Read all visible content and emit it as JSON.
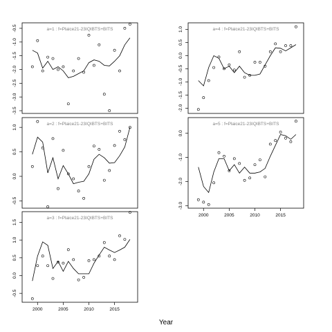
{
  "chart_data": [
    {
      "type": "line",
      "title": "a=1 : f=Plaice21-23IQIBTS+BITS",
      "xlim": [
        1997,
        2019.5
      ],
      "ylim": [
        -3.6,
        -0.3
      ],
      "yticks": [
        -3.5,
        -3.0,
        -2.5,
        -2.0,
        -1.5,
        -1.0,
        -0.5
      ],
      "ytick_labels": [
        "-3.5",
        "-3.0",
        "-2.5",
        "-2.0",
        "-1.5",
        "-1.0",
        "-0.5"
      ],
      "xticks": [],
      "xtick_labels": [],
      "fit": {
        "x": [
          1999,
          2000,
          2001,
          2002,
          2003,
          2004,
          2005,
          2006,
          2007,
          2008,
          2009,
          2010,
          2011,
          2012,
          2013,
          2014,
          2015,
          2016,
          2017,
          2018
        ],
        "y": [
          -1.3,
          -1.4,
          -1.95,
          -1.7,
          -2.0,
          -1.9,
          -2.05,
          -2.3,
          -2.25,
          -2.15,
          -2.05,
          -1.75,
          -1.65,
          -1.7,
          -1.85,
          -1.87,
          -1.7,
          -1.5,
          -1.1,
          -0.85
        ]
      },
      "points": {
        "x": [
          1999,
          2000,
          2001,
          2002,
          2003,
          2004,
          2005,
          2006,
          2007,
          2008,
          2009,
          2010,
          2011,
          2012,
          2013,
          2014,
          2015,
          2016,
          2017,
          2018
        ],
        "y": [
          -1.9,
          -0.95,
          -2.05,
          -1.55,
          -1.6,
          -2.0,
          -1.9,
          -3.25,
          -2.05,
          -1.6,
          -2.1,
          -0.75,
          -1.85,
          -1.1,
          -2.9,
          -3.5,
          -1.3,
          -2.05,
          -0.5,
          -0.35
        ]
      }
    },
    {
      "type": "line",
      "title": "a=2 : f=Plaice21-23IQIBTS+BITS",
      "xlim": [
        1997,
        2019.5
      ],
      "ylim": [
        -0.65,
        1.2
      ],
      "yticks": [
        -0.5,
        0.0,
        0.5,
        1.0
      ],
      "ytick_labels": [
        "-0.5",
        "0.0",
        "0.5",
        "1.0"
      ],
      "xticks": [],
      "xtick_labels": [],
      "fit": {
        "x": [
          1999,
          2000,
          2001,
          2002,
          2003,
          2004,
          2005,
          2006,
          2007,
          2008,
          2009,
          2010,
          2011,
          2012,
          2013,
          2014,
          2015,
          2016,
          2017,
          2018
        ],
        "y": [
          0.45,
          0.8,
          0.7,
          0.07,
          0.38,
          -0.05,
          0.22,
          0.05,
          -0.15,
          -0.12,
          -0.1,
          0.05,
          0.35,
          0.45,
          0.38,
          0.27,
          0.28,
          0.42,
          0.6,
          1.0
        ]
      },
      "points": {
        "x": [
          1999,
          2000,
          2001,
          2002,
          2003,
          2004,
          2005,
          2006,
          2007,
          2008,
          2009,
          2010,
          2011,
          2012,
          2013,
          2014,
          2015,
          2016,
          2017,
          2018
        ],
        "y": [
          0.2,
          1.12,
          0.58,
          -0.62,
          0.77,
          -0.25,
          0.53,
          0.05,
          -0.05,
          -0.3,
          -0.45,
          0.2,
          0.62,
          0.55,
          -0.08,
          0.12,
          0.63,
          0.92,
          0.75,
          1.0
        ]
      }
    },
    {
      "type": "line",
      "title": "a=3 : f=Plaice21-23IQIBTS+BITS",
      "xlim": [
        1997,
        2019.5
      ],
      "ylim": [
        -0.75,
        1.8
      ],
      "yticks": [
        -0.5,
        0.0,
        0.5,
        1.0,
        1.5
      ],
      "ytick_labels": [
        "-0.5",
        "0.0",
        "0.5",
        "1.0",
        "1.5"
      ],
      "xticks": [
        2000,
        2005,
        2010,
        2015
      ],
      "xtick_labels": [
        "2000",
        "2005",
        "2010",
        "2015"
      ],
      "fit": {
        "x": [
          1999,
          2000,
          2001,
          2002,
          2003,
          2004,
          2005,
          2006,
          2007,
          2008,
          2009,
          2010,
          2011,
          2012,
          2013,
          2014,
          2015,
          2016,
          2017,
          2018
        ],
        "y": [
          -0.15,
          0.55,
          0.95,
          0.85,
          0.2,
          0.4,
          0.12,
          0.4,
          0.2,
          0.05,
          0.05,
          0.05,
          0.35,
          0.58,
          0.8,
          0.72,
          0.65,
          0.72,
          0.8,
          1.02
        ]
      },
      "points": {
        "x": [
          1999,
          2000,
          2001,
          2002,
          2003,
          2004,
          2005,
          2006,
          2007,
          2008,
          2009,
          2010,
          2011,
          2012,
          2013,
          2014,
          2015,
          2016,
          2017,
          2018
        ],
        "y": [
          -0.65,
          0.28,
          0.55,
          0.28,
          -0.08,
          0.38,
          0.35,
          0.73,
          0.45,
          -0.12,
          -0.05,
          0.42,
          0.45,
          0.55,
          0.93,
          0.55,
          0.45,
          1.12,
          1.02,
          1.78
        ]
      }
    },
    {
      "type": "line",
      "title": "a=4 : f=Plaice21-23IQIBTS+BITS",
      "xlim": [
        1997,
        2019.5
      ],
      "ylim": [
        -2.2,
        1.25
      ],
      "yticks": [
        -2.0,
        -1.5,
        -1.0,
        -0.5,
        0.0,
        0.5,
        1.0
      ],
      "ytick_labels": [
        "-2.0",
        "-1.5",
        "-1.0",
        "-0.5",
        "0.0",
        "0.5",
        "1.0"
      ],
      "xticks": [],
      "xtick_labels": [],
      "fit": {
        "x": [
          1999,
          2000,
          2001,
          2002,
          2003,
          2004,
          2005,
          2006,
          2007,
          2008,
          2009,
          2010,
          2011,
          2012,
          2013,
          2014,
          2015,
          2016,
          2017,
          2018
        ],
        "y": [
          -0.95,
          -1.15,
          -0.45,
          0.0,
          -0.1,
          -0.5,
          -0.4,
          -0.65,
          -0.4,
          -0.65,
          -0.75,
          -0.75,
          -0.7,
          -0.35,
          0.0,
          0.3,
          0.28,
          0.18,
          0.3,
          0.42
        ]
      },
      "points": {
        "x": [
          1999,
          2000,
          2001,
          2002,
          2003,
          2004,
          2005,
          2006,
          2007,
          2008,
          2009,
          2010,
          2011,
          2012,
          2013,
          2014,
          2015,
          2016,
          2017,
          2018
        ],
        "y": [
          -2.05,
          -1.6,
          -0.95,
          -0.45,
          -0.05,
          -0.5,
          -0.35,
          -0.55,
          0.15,
          -0.82,
          -0.75,
          -0.25,
          -0.25,
          -0.4,
          0.15,
          0.45,
          0.15,
          0.38,
          0.38,
          1.1
        ]
      }
    },
    {
      "type": "line",
      "title": "a=5 : f=Plaice21-23IQIBTS+BITS",
      "xlim": [
        1997,
        2019.5
      ],
      "ylim": [
        -3.1,
        0.65
      ],
      "yticks": [
        -3.0,
        -2.0,
        -1.0,
        0.0
      ],
      "ytick_labels": [
        "-3.0",
        "-2.0",
        "-1.0",
        "0.0"
      ],
      "xticks": [
        2000,
        2005,
        2010,
        2015
      ],
      "xtick_labels": [
        "2000",
        "2005",
        "2010",
        "2015"
      ],
      "fit": {
        "x": [
          1999,
          2000,
          2001,
          2002,
          2003,
          2004,
          2005,
          2006,
          2007,
          2008,
          2009,
          2010,
          2011,
          2012,
          2013,
          2014,
          2015,
          2016,
          2017,
          2018
        ],
        "y": [
          -1.4,
          -2.2,
          -2.45,
          -1.6,
          -1.05,
          -1.05,
          -1.55,
          -1.3,
          -1.65,
          -1.4,
          -1.65,
          -1.65,
          -1.6,
          -1.45,
          -0.95,
          -0.5,
          -0.05,
          -0.1,
          -0.25,
          -0.05
        ]
      },
      "points": {
        "x": [
          1999,
          2000,
          2001,
          2002,
          2003,
          2004,
          2005,
          2006,
          2007,
          2008,
          2009,
          2010,
          2011,
          2012,
          2013,
          2014,
          2015,
          2016,
          2017,
          2018
        ],
        "y": [
          -2.75,
          -2.85,
          -2.95,
          -2.05,
          -0.8,
          -0.95,
          -1.55,
          -1.05,
          -1.25,
          -1.95,
          -1.85,
          -1.3,
          -1.1,
          -1.8,
          -0.45,
          -0.3,
          0.05,
          -0.2,
          -0.35,
          0.5
        ]
      }
    }
  ],
  "figure": {
    "xlabel": "Year"
  }
}
